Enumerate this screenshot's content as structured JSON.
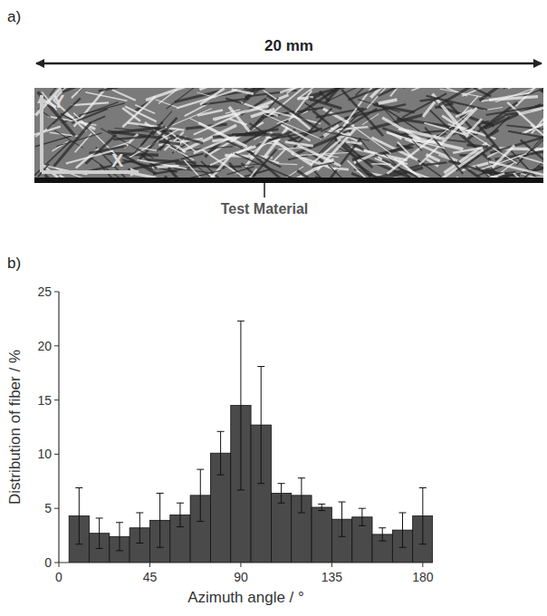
{
  "panel_a": {
    "label": "a)",
    "scale_text": "20 mm",
    "axis_y": "Y",
    "axis_x": "X",
    "caption": "Test Material"
  },
  "chart_data": {
    "type": "histogram",
    "panel_label": "b)",
    "x_label": "Azimuth angle / °",
    "y_label": "Distribution of fiber / %",
    "bins": [
      5,
      15,
      25,
      35,
      45,
      55,
      65,
      75,
      85,
      95,
      105,
      115,
      125,
      135,
      145,
      155,
      165,
      175,
      185
    ],
    "values": [
      4.3,
      2.7,
      2.4,
      3.2,
      3.9,
      4.4,
      6.2,
      10.1,
      14.5,
      12.7,
      6.4,
      6.2,
      5.1,
      4.0,
      4.2,
      2.6,
      3.0,
      4.3
    ],
    "errors": [
      2.6,
      1.4,
      1.3,
      1.4,
      2.5,
      1.1,
      2.4,
      2.0,
      7.8,
      5.4,
      0.9,
      1.6,
      0.3,
      1.6,
      0.8,
      0.6,
      1.6,
      2.6
    ],
    "color": "#4a4a4a",
    "xlim": [
      0,
      185
    ],
    "xticks": [
      0,
      45,
      90,
      135,
      180
    ],
    "ylim": [
      0,
      25
    ],
    "yticks": [
      0,
      5,
      10,
      15,
      20,
      25
    ],
    "grid": false
  }
}
